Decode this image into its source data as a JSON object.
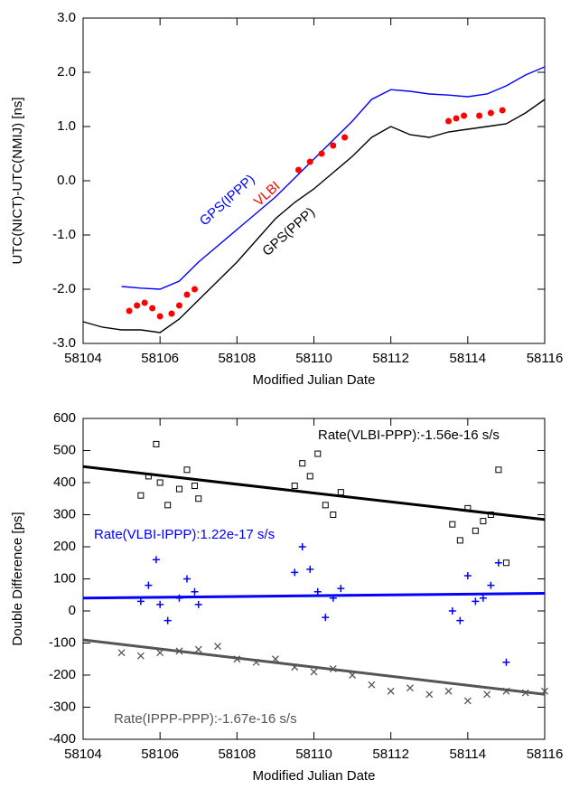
{
  "chart_data": [
    {
      "type": "line",
      "ylabel": "UTC(NICT)-UTC(NMIJ) [ns]",
      "xlabel": "Modified Julian Date",
      "xlim": [
        58104,
        58116
      ],
      "xticks": [
        58104,
        58106,
        58108,
        58110,
        58112,
        58114,
        58116
      ],
      "ylim": [
        -3,
        3
      ],
      "yticks": [
        {
          "value": -3,
          "label": "-3.0"
        },
        {
          "value": -2,
          "label": "-2.0"
        },
        {
          "value": -1,
          "label": "-1.0"
        },
        {
          "value": 0,
          "label": "0.0"
        },
        {
          "value": 1,
          "label": "1.0"
        },
        {
          "value": 2,
          "label": "2.0"
        },
        {
          "value": 3,
          "label": "3.0"
        }
      ],
      "series": [
        {
          "name": "GPS(IPPP)",
          "color": "#0000ff",
          "marker": "line",
          "x": [
            58105,
            58105.5,
            58106,
            58106.5,
            58107,
            58107.5,
            58108,
            58108.5,
            58109,
            58109.5,
            58110,
            58110.5,
            58111,
            58111.5,
            58112,
            58112.5,
            58113,
            58113.5,
            58114,
            58114.5,
            58115,
            58115.5,
            58116
          ],
          "values": [
            -1.95,
            -1.98,
            -2.0,
            -1.85,
            -1.5,
            -1.2,
            -0.9,
            -0.6,
            -0.3,
            0.05,
            0.4,
            0.75,
            1.1,
            1.5,
            1.68,
            1.65,
            1.6,
            1.58,
            1.55,
            1.6,
            1.75,
            1.95,
            2.1
          ]
        },
        {
          "name": "GPS(PPP)",
          "color": "#000000",
          "marker": "line",
          "x": [
            58104,
            58104.5,
            58105,
            58105.5,
            58106,
            58106.5,
            58107,
            58107.5,
            58108,
            58108.5,
            58109,
            58109.5,
            58110,
            58110.5,
            58111,
            58111.5,
            58112,
            58112.5,
            58113,
            58113.5,
            58114,
            58114.5,
            58115,
            58115.5,
            58116
          ],
          "values": [
            -2.6,
            -2.7,
            -2.75,
            -2.75,
            -2.8,
            -2.55,
            -2.2,
            -1.85,
            -1.5,
            -1.1,
            -0.7,
            -0.4,
            -0.15,
            0.15,
            0.45,
            0.8,
            1.0,
            0.85,
            0.8,
            0.9,
            0.95,
            1.0,
            1.05,
            1.25,
            1.5
          ]
        },
        {
          "name": "VLBI",
          "color": "#ff0000",
          "marker": "dot",
          "x": [
            58105.2,
            58105.4,
            58105.6,
            58105.8,
            58106.0,
            58106.3,
            58106.5,
            58106.7,
            58106.9,
            58109.6,
            58109.9,
            58110.2,
            58110.5,
            58110.8,
            58113.5,
            58113.7,
            58113.9,
            58114.3,
            58114.6,
            58114.9
          ],
          "values": [
            -2.4,
            -2.3,
            -2.25,
            -2.35,
            -2.5,
            -2.45,
            -2.3,
            -2.1,
            -2.0,
            0.2,
            0.35,
            0.5,
            0.65,
            0.8,
            1.1,
            1.15,
            1.2,
            1.2,
            1.25,
            1.3
          ]
        }
      ],
      "annotations": [
        {
          "text": "GPS(IPPP)",
          "color": "#0000ff"
        },
        {
          "text": "VLBI",
          "color": "#ff0000"
        },
        {
          "text": "GPS(PPP)",
          "color": "#000000"
        }
      ]
    },
    {
      "type": "scatter",
      "ylabel": "Double Difference [ps]",
      "xlabel": "Modified Julian Date",
      "xlim": [
        58104,
        58116
      ],
      "xticks": [
        58104,
        58106,
        58108,
        58110,
        58112,
        58114,
        58116
      ],
      "ylim": [
        -400,
        600
      ],
      "yticks": [
        -400,
        -300,
        -200,
        -100,
        0,
        100,
        200,
        300,
        400,
        500,
        600
      ],
      "series": [
        {
          "name": "VLBI-PPP",
          "color": "#000000",
          "marker": "square",
          "x": [
            58105.5,
            58105.7,
            58105.9,
            58106.0,
            58106.2,
            58106.5,
            58106.7,
            58106.9,
            58107.0,
            58109.5,
            58109.7,
            58109.9,
            58110.1,
            58110.3,
            58110.5,
            58110.7,
            58113.6,
            58113.8,
            58114.0,
            58114.2,
            58114.4,
            58114.6,
            58114.8,
            58115.0
          ],
          "values": [
            360,
            420,
            520,
            400,
            330,
            380,
            440,
            390,
            350,
            390,
            460,
            420,
            490,
            330,
            300,
            370,
            270,
            220,
            320,
            250,
            280,
            300,
            440,
            150
          ]
        },
        {
          "name": "VLBI-IPPP",
          "color": "#0000ff",
          "marker": "plus",
          "x": [
            58105.5,
            58105.7,
            58105.9,
            58106.0,
            58106.2,
            58106.5,
            58106.7,
            58106.9,
            58107.0,
            58109.5,
            58109.7,
            58109.9,
            58110.1,
            58110.3,
            58110.5,
            58110.7,
            58113.6,
            58113.8,
            58114.0,
            58114.2,
            58114.4,
            58114.6,
            58114.8,
            58115.0
          ],
          "values": [
            30,
            80,
            160,
            20,
            -30,
            40,
            100,
            60,
            20,
            120,
            200,
            130,
            60,
            -20,
            40,
            70,
            0,
            -30,
            110,
            30,
            40,
            80,
            150,
            -160
          ]
        },
        {
          "name": "IPPP-PPP",
          "color": "#555555",
          "marker": "cross",
          "x": [
            58105,
            58105.5,
            58106,
            58106.5,
            58107,
            58107.5,
            58108,
            58108.5,
            58109,
            58109.5,
            58110,
            58110.5,
            58111,
            58111.5,
            58112,
            58112.5,
            58113,
            58113.5,
            58114,
            58114.5,
            58115,
            58115.5,
            58116
          ],
          "values": [
            -130,
            -140,
            -130,
            -125,
            -120,
            -110,
            -150,
            -160,
            -150,
            -175,
            -190,
            -180,
            -200,
            -230,
            -250,
            -240,
            -260,
            -250,
            -280,
            -260,
            -250,
            -255,
            -250
          ]
        },
        {
          "name": "Fit VLBI-PPP",
          "color": "#000000",
          "marker": "fit",
          "x": [
            58104,
            58116
          ],
          "values": [
            450,
            285
          ]
        },
        {
          "name": "Fit VLBI-IPPP",
          "color": "#0000ff",
          "marker": "fit",
          "x": [
            58104,
            58116
          ],
          "values": [
            40,
            55
          ]
        },
        {
          "name": "Fit IPPP-PPP",
          "color": "#555555",
          "marker": "fit",
          "x": [
            58104,
            58116
          ],
          "values": [
            -90,
            -260
          ]
        }
      ],
      "annotations": [
        {
          "text": "Rate(VLBI-PPP):-1.56e-16 s/s",
          "color": "#000000"
        },
        {
          "text": "Rate(VLBI-IPPP):1.22e-17 s/s",
          "color": "#0000ff"
        },
        {
          "text": "Rate(IPPP-PPP):-1.67e-16 s/s",
          "color": "#555555"
        }
      ]
    }
  ]
}
